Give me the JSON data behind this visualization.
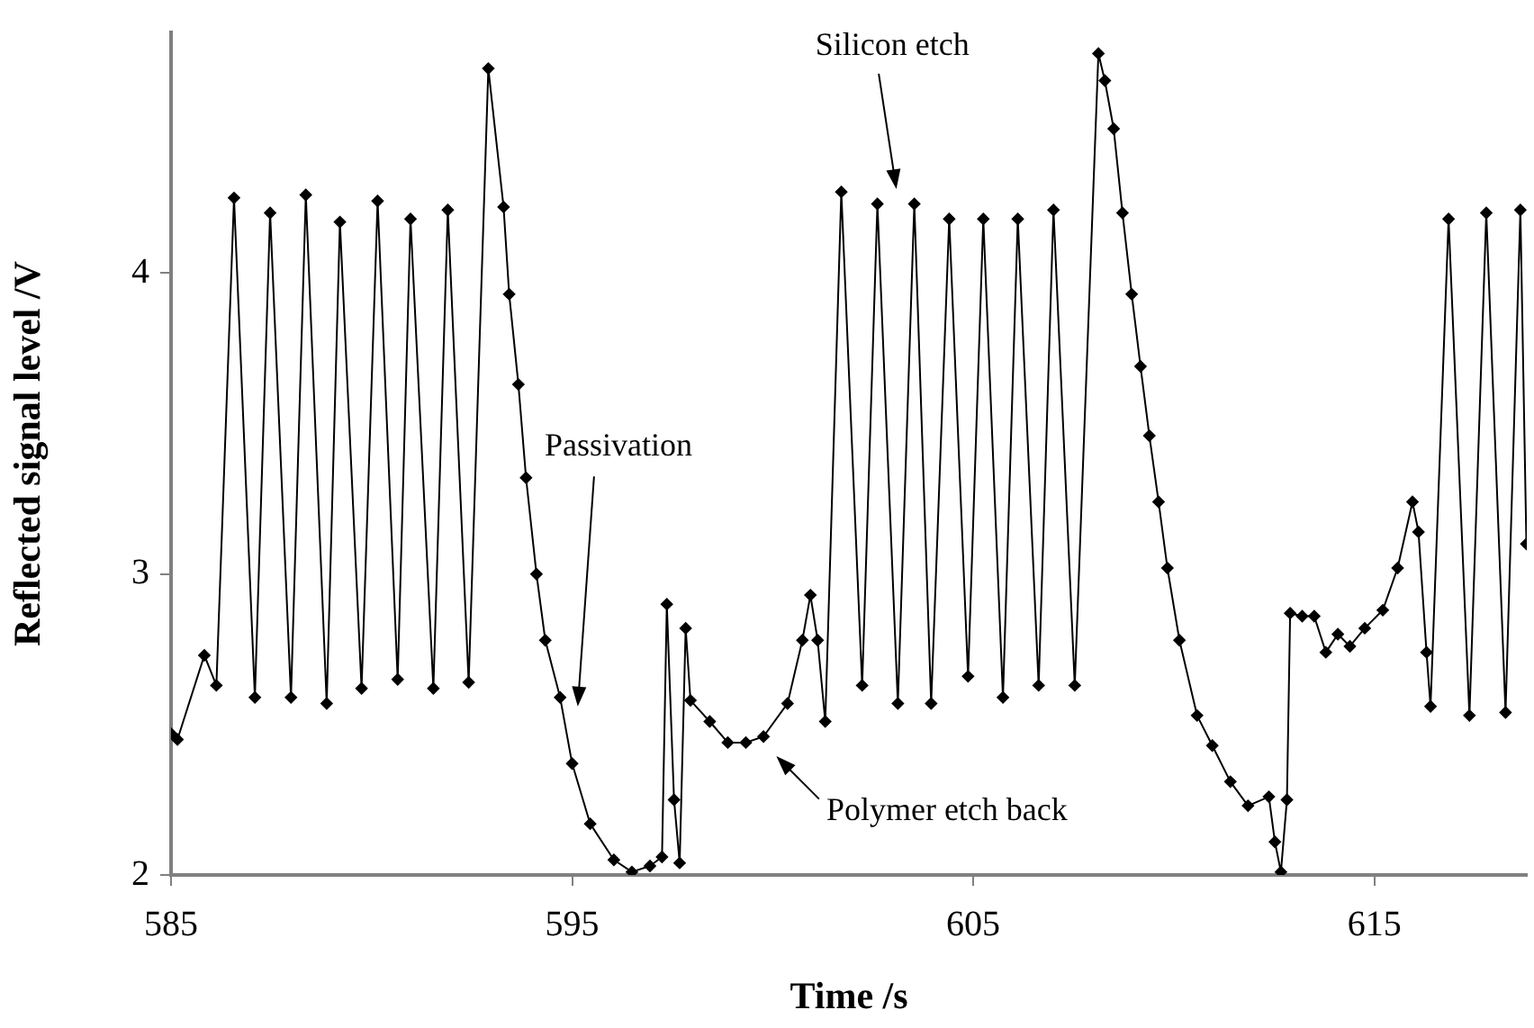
{
  "chart_data": {
    "type": "line",
    "xlabel": "Time /s",
    "ylabel": "Reflected signal level /V",
    "x": [
      585.0,
      585.16,
      585.83,
      586.13,
      586.57,
      587.09,
      587.47,
      587.99,
      588.36,
      588.88,
      589.21,
      589.75,
      590.15,
      590.65,
      590.97,
      591.54,
      591.9,
      592.42,
      592.91,
      593.29,
      593.43,
      593.66,
      593.85,
      594.11,
      594.33,
      594.7,
      595.0,
      595.45,
      596.04,
      596.49,
      596.94,
      597.24,
      597.36,
      597.54,
      597.68,
      597.83,
      597.95,
      598.43,
      598.88,
      599.33,
      599.77,
      600.37,
      600.74,
      600.94,
      601.12,
      601.31,
      601.71,
      602.23,
      602.61,
      603.12,
      603.53,
      603.95,
      604.4,
      604.87,
      605.25,
      605.74,
      606.11,
      606.63,
      607.0,
      607.53,
      608.12,
      608.28,
      608.5,
      608.72,
      608.95,
      609.17,
      609.39,
      609.62,
      609.84,
      610.14,
      610.58,
      610.96,
      611.41,
      611.85,
      612.37,
      612.52,
      612.67,
      612.82,
      612.9,
      613.2,
      613.5,
      613.79,
      614.09,
      614.39,
      614.76,
      615.21,
      615.58,
      615.95,
      616.1,
      616.3,
      616.4,
      616.85,
      617.37,
      617.79,
      618.27,
      618.64,
      618.79
    ],
    "values": [
      2.47,
      2.45,
      2.73,
      2.63,
      4.25,
      2.59,
      4.2,
      2.59,
      4.26,
      2.57,
      4.17,
      2.62,
      4.24,
      2.65,
      4.18,
      2.62,
      4.21,
      2.64,
      4.68,
      4.22,
      3.93,
      3.63,
      3.32,
      3.0,
      2.78,
      2.59,
      2.37,
      2.17,
      2.05,
      2.01,
      2.03,
      2.06,
      2.9,
      2.25,
      2.04,
      2.82,
      2.58,
      2.51,
      2.44,
      2.44,
      2.46,
      2.57,
      2.78,
      2.93,
      2.78,
      2.51,
      4.27,
      2.63,
      4.23,
      2.57,
      4.23,
      2.57,
      4.18,
      2.66,
      4.18,
      2.59,
      4.18,
      2.63,
      4.21,
      2.63,
      4.73,
      4.64,
      4.48,
      4.2,
      3.93,
      3.69,
      3.46,
      3.24,
      3.02,
      2.78,
      2.53,
      2.43,
      2.31,
      2.23,
      2.26,
      2.11,
      2.01,
      2.25,
      2.87,
      2.86,
      2.86,
      2.74,
      2.8,
      2.76,
      2.82,
      2.88,
      3.02,
      3.24,
      3.14,
      2.74,
      2.56,
      4.18,
      2.53,
      4.2,
      2.54,
      4.21,
      3.1
    ],
    "color": "#000000",
    "marker": "diamond",
    "grid": false,
    "legend": false,
    "xlim": [
      585,
      618.8
    ],
    "xticks": [
      585,
      595,
      605,
      615
    ],
    "ylim": [
      2,
      4.8
    ],
    "yticks": [
      2,
      3,
      4
    ],
    "annotations": [
      "Passivation",
      "Silicon etch",
      {
        "text": "Polymer etch back",
        "x": 599.9,
        "y": 2.42
      }
    ]
  }
}
